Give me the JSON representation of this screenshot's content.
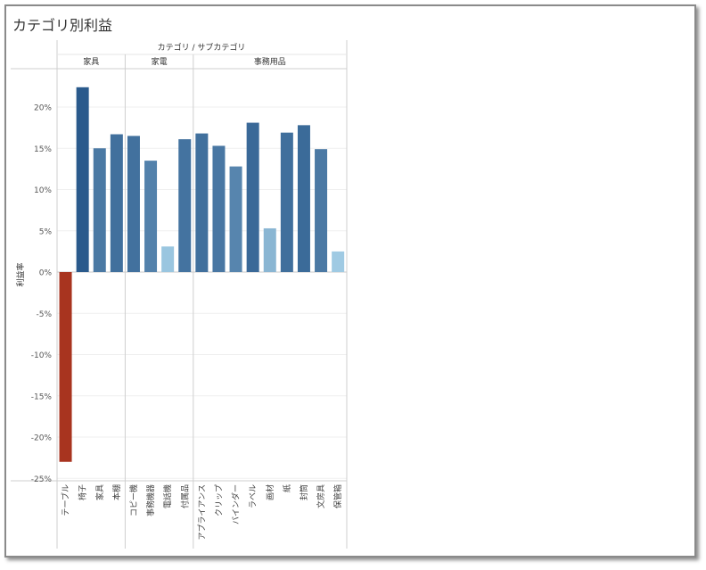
{
  "page": {
    "title": "カテゴリ別利益"
  },
  "chart_data": {
    "type": "bar",
    "title": "カテゴリ別利益",
    "header_label": "カテゴリ / サブカテゴリ",
    "groups": [
      {
        "name": "家具",
        "categories": [
          "テーブル",
          "椅子",
          "家具",
          "本棚"
        ],
        "values": [
          -23.0,
          22.4,
          15.0,
          16.7
        ]
      },
      {
        "name": "家電",
        "categories": [
          "コピー機",
          "事務機器",
          "電話機",
          "付属品"
        ],
        "values": [
          16.5,
          13.5,
          3.1,
          16.1
        ]
      },
      {
        "name": "事務用品",
        "categories": [
          "アプライアンス",
          "クリップ",
          "バインダー",
          "ラベル",
          "画材",
          "紙",
          "封筒",
          "文房具",
          "保管箱"
        ],
        "values": [
          16.8,
          15.3,
          12.8,
          18.1,
          5.3,
          16.9,
          17.8,
          14.9,
          2.5
        ]
      }
    ],
    "ylabel": "利益率",
    "ylim": [
      -25,
      25
    ],
    "yticks": [
      20,
      15,
      10,
      5,
      0,
      -5,
      -10,
      -15,
      -20,
      -25
    ],
    "ytick_labels": [
      "20%",
      "15%",
      "10%",
      "5%",
      "0%",
      "-5%",
      "-10%",
      "-15%",
      "-20%",
      "-25%"
    ],
    "grid": true,
    "colors": {
      "negative": "#a8341f",
      "positive_dark": "#2a5a8c",
      "positive_light": "#9fcae3"
    }
  }
}
